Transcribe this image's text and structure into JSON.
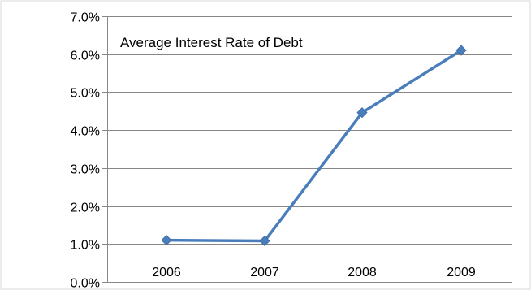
{
  "chart_data": {
    "type": "line",
    "title": "Average Interest Rate of Debt",
    "categories": [
      "2006",
      "2007",
      "2008",
      "2009"
    ],
    "series": [
      {
        "values": [
          0.011,
          0.0108,
          0.0446,
          0.061
        ]
      }
    ],
    "y_tick_labels": [
      "0.0%",
      "1.0%",
      "2.0%",
      "3.0%",
      "4.0%",
      "5.0%",
      "6.0%",
      "7.0%"
    ],
    "ylim": [
      0,
      0.07
    ],
    "grid": true,
    "legend": "none",
    "line_color": "#4a7ebb",
    "marker": "diamond"
  }
}
